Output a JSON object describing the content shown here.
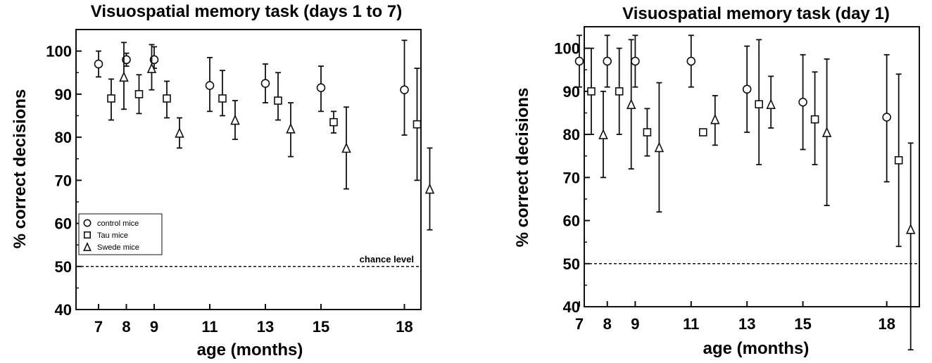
{
  "chart_data": [
    {
      "type": "scatter",
      "title": "Visuospatial memory task (days 1 to 7)",
      "xlabel": "age (months)",
      "ylabel": "% correct decisions",
      "xticks": [
        7,
        8,
        9,
        11,
        13,
        15,
        18
      ],
      "yticks": [
        40,
        50,
        60,
        70,
        80,
        90,
        100
      ],
      "ylim": [
        40,
        105
      ],
      "grid": false,
      "legend": "bottom-left",
      "annotation": "chance level",
      "reference_line": 50,
      "series": [
        {
          "name": "control mice",
          "marker": "circle",
          "x": [
            7,
            8,
            9,
            11,
            13,
            15,
            18
          ],
          "y": [
            97,
            98,
            98,
            92,
            92.5,
            91.5,
            91
          ],
          "err_low": [
            94,
            96.5,
            96,
            86,
            88,
            86,
            80.5
          ],
          "err_high": [
            100,
            99.5,
            101,
            98.5,
            97,
            96.5,
            102.5
          ]
        },
        {
          "name": "Tau mice",
          "marker": "square",
          "x": [
            7,
            8,
            9,
            11,
            13,
            15,
            18
          ],
          "y": [
            89,
            90,
            89,
            89,
            88.5,
            83.5,
            83
          ],
          "err_low": [
            84,
            85.5,
            84.5,
            85,
            84,
            81,
            70
          ],
          "err_high": [
            93.5,
            94.5,
            93,
            95.5,
            95,
            86,
            96
          ]
        },
        {
          "name": "Swede mice",
          "marker": "triangle",
          "x": [
            7,
            8,
            9,
            11,
            13,
            15,
            18
          ],
          "y": [
            94,
            96,
            81,
            84,
            82,
            77.5,
            68
          ],
          "err_low": [
            86.5,
            91,
            77.5,
            79.5,
            75.5,
            68,
            58.5
          ],
          "err_high": [
            102,
            101.5,
            84.5,
            88.5,
            88,
            87,
            77.5
          ]
        }
      ]
    },
    {
      "type": "scatter",
      "title": "Visuospatial memory task (day 1)",
      "xlabel": "age (months)",
      "ylabel": "% correct decisions",
      "xticks": [
        7,
        8,
        9,
        11,
        13,
        15,
        18
      ],
      "yticks": [
        40,
        50,
        60,
        70,
        80,
        90,
        100
      ],
      "ylim": [
        40,
        105
      ],
      "grid": false,
      "reference_line": 50,
      "series": [
        {
          "marker": "circle",
          "x": [
            7,
            8,
            9,
            11,
            13,
            15,
            18
          ],
          "y": [
            97,
            97,
            97,
            97,
            90.5,
            87.5,
            84
          ],
          "err_low": [
            91,
            91,
            91,
            91,
            80.5,
            76.5,
            69
          ],
          "err_high": [
            103,
            103,
            103,
            103,
            100.5,
            98.5,
            98.5
          ]
        },
        {
          "marker": "square",
          "x": [
            7,
            8,
            9,
            11,
            13,
            15,
            18
          ],
          "y": [
            90,
            90,
            80.5,
            80.5,
            87,
            83.5,
            74
          ],
          "err_low": [
            80,
            80,
            75,
            80.5,
            73,
            73,
            54
          ],
          "err_high": [
            100,
            100,
            86,
            80.5,
            102,
            94.5,
            94
          ]
        },
        {
          "marker": "triangle",
          "x": [
            7,
            8,
            9,
            11,
            13,
            15,
            18
          ],
          "y": [
            80,
            87,
            77,
            83.5,
            87,
            80.5,
            58
          ],
          "err_low": [
            70,
            72,
            62,
            77.5,
            81.5,
            63.5,
            30
          ],
          "err_high": [
            90,
            102,
            92,
            89,
            93.5,
            97.5,
            78
          ]
        }
      ]
    }
  ]
}
